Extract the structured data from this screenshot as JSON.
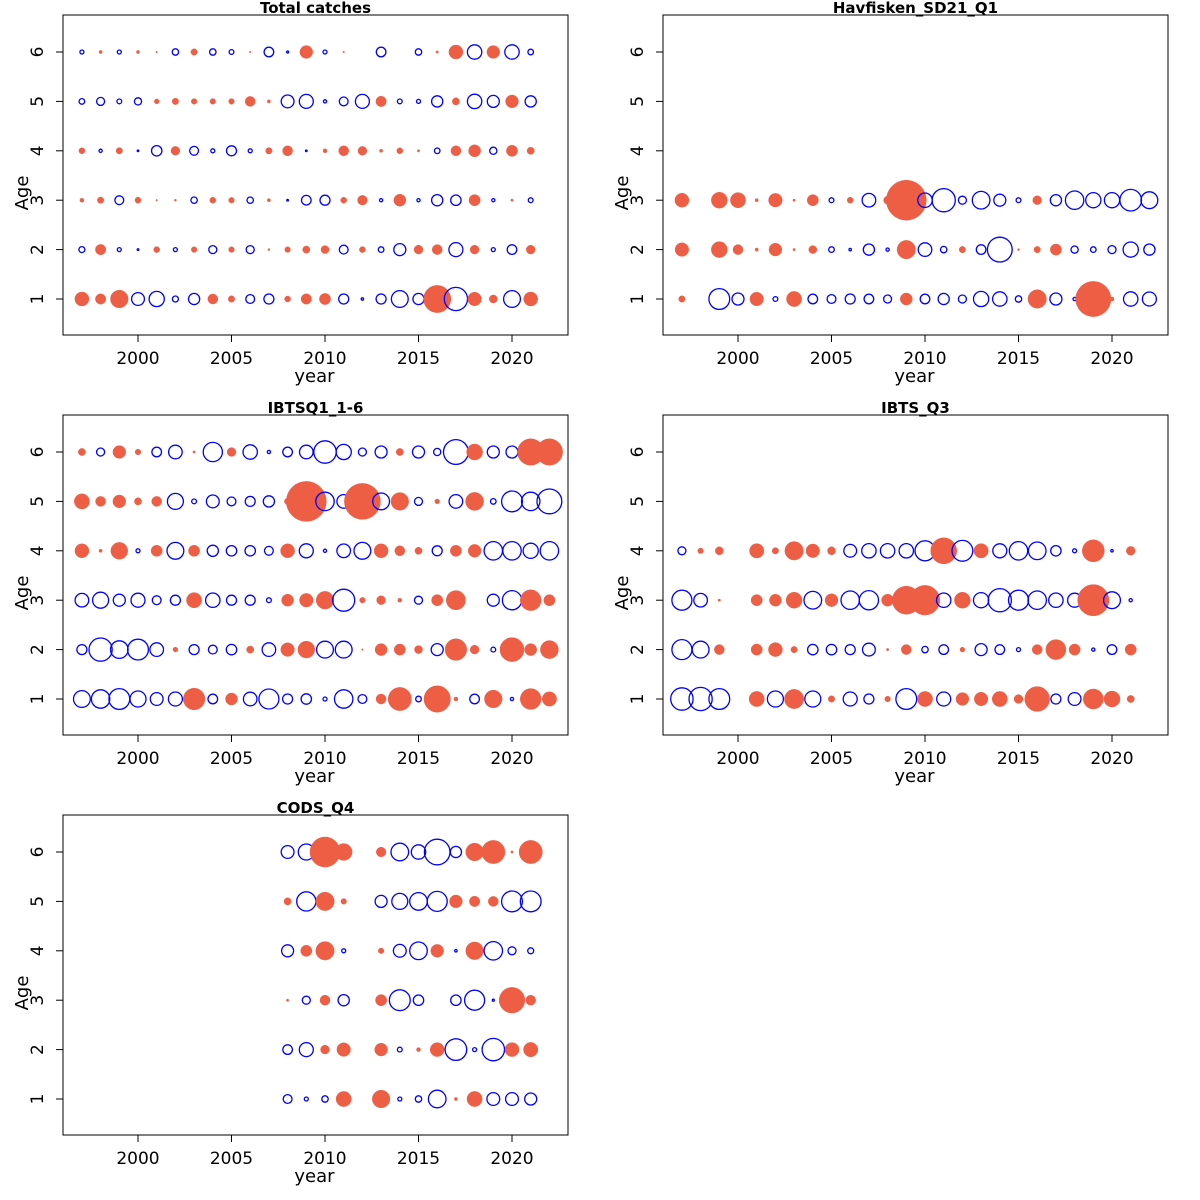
{
  "colors": {
    "positive": "#EE5E45",
    "negative": "#0000FF"
  },
  "chart_data": [
    {
      "type": "scatter",
      "title": "Total catches",
      "xlabel": "year",
      "ylabel": "Age",
      "xlim": [
        1996,
        2023
      ],
      "ylim": [
        0.3,
        6.7
      ],
      "xticks": [
        2000,
        2005,
        2010,
        2015,
        2020
      ],
      "yticks": [
        1,
        2,
        3,
        4,
        5,
        6
      ],
      "years": [
        1997,
        1998,
        1999,
        2000,
        2001,
        2002,
        2003,
        2004,
        2005,
        2006,
        2007,
        2008,
        2009,
        2010,
        2011,
        2012,
        2013,
        2014,
        2015,
        2016,
        2017,
        2018,
        2019,
        2020,
        2021
      ],
      "ages": [
        1,
        2,
        3,
        4,
        5,
        6
      ],
      "residuals": [
        [
          1.75,
          1.3,
          2.2,
          -1.6,
          -1.9,
          -0.75,
          -1.4,
          1.25,
          0.8,
          -1.1,
          -1.25,
          0.75,
          1.3,
          1.4,
          -1.25,
          -0.3,
          -1.25,
          -2.1,
          -1.4,
          3.4,
          -2.9,
          1.7,
          1,
          -2.1,
          1.75
        ],
        [
          -0.75,
          1.3,
          -0.5,
          -0.2,
          0.75,
          -0.5,
          0.7,
          -1,
          0.7,
          -1,
          0.25,
          0.7,
          0.9,
          1,
          -1.1,
          0.75,
          -0.7,
          -1.5,
          1.1,
          1.25,
          -1.75,
          1.1,
          -0.5,
          -1.2,
          1.1
        ],
        [
          0.5,
          0.8,
          -1.1,
          0.75,
          0.1,
          0.25,
          -0.8,
          0.75,
          0.7,
          -0.8,
          0.4,
          -0.2,
          -1.2,
          -1.25,
          0.75,
          1.2,
          -0.4,
          1.5,
          -0.4,
          -1.4,
          -1.3,
          1.4,
          -0.4,
          0.3,
          -0.6
        ],
        [
          0.75,
          -0.4,
          0.8,
          -0.15,
          -1.3,
          1.1,
          -1.1,
          -0.5,
          -1.25,
          -0.5,
          0.8,
          1.25,
          -0.15,
          0.5,
          1.25,
          1.1,
          0.4,
          0.75,
          0.3,
          -0.7,
          1.25,
          1.5,
          -0.9,
          1.4,
          0.9
        ],
        [
          -0.7,
          -1,
          -0.6,
          -0.9,
          0.6,
          0.8,
          0.7,
          0.7,
          0.7,
          1.25,
          0.4,
          -1.6,
          -1.75,
          -0.4,
          -1.1,
          -1.75,
          1.3,
          -0.6,
          -0.5,
          -1.4,
          0.9,
          -1.8,
          -1.5,
          1.6,
          -1.4
        ],
        [
          -0.5,
          0.4,
          -0.5,
          0.4,
          0.1,
          -0.8,
          0.8,
          -0.8,
          -0.6,
          0.2,
          -1.2,
          -0.25,
          1.6,
          -0.5,
          0.1,
          null,
          -1.2,
          null,
          -0.8,
          0.3,
          1.75,
          -1.8,
          1.6,
          -1.8,
          -0.7
        ]
      ]
    },
    {
      "type": "scatter",
      "title": "Havfisken_SD21_Q1",
      "xlabel": "year",
      "ylabel": "Age",
      "xlim": [
        1996,
        2023
      ],
      "ylim": [
        0.3,
        6.7
      ],
      "xticks": [
        2000,
        2005,
        2010,
        2015,
        2020
      ],
      "yticks": [
        1,
        2,
        3,
        4,
        5,
        6
      ],
      "years": [
        1997,
        1998,
        1999,
        2000,
        2001,
        2002,
        2003,
        2004,
        2005,
        2006,
        2007,
        2008,
        2009,
        2010,
        2011,
        2012,
        2013,
        2014,
        2015,
        2016,
        2017,
        2018,
        2019,
        2020,
        2021,
        2022
      ],
      "ages": [
        1,
        2,
        3
      ],
      "residuals": [
        [
          0.8,
          null,
          -2.6,
          -1.5,
          1.7,
          -0.6,
          1.9,
          -1.2,
          -1.1,
          -1.25,
          -1.2,
          -1,
          1.5,
          -1.2,
          -1.4,
          -1,
          -1.9,
          -1.8,
          -0.8,
          2.3,
          -1.5,
          -0.4,
          4.4,
          0.5,
          -1.8,
          -1.75
        ],
        [
          1.7,
          null,
          2,
          1.25,
          0.4,
          1.6,
          0.3,
          1,
          -0.7,
          -0.3,
          -1.4,
          -0.4,
          2.3,
          -1.7,
          -0.8,
          0.8,
          -1.2,
          -3.1,
          0.25,
          0.8,
          1.4,
          -0.9,
          -0.7,
          -1,
          -1.9,
          -1.4
        ],
        [
          1.75,
          null,
          2,
          1.9,
          0.4,
          1.7,
          0.3,
          1.4,
          -0.6,
          0.75,
          -1.7,
          1,
          5,
          -1.8,
          -2.9,
          -1,
          -2.2,
          -1.5,
          -0.6,
          1.1,
          -1.4,
          -2.3,
          -1.9,
          -1.9,
          -2.7,
          -2.1
        ]
      ]
    },
    {
      "type": "scatter",
      "title": "IBTSQ1_1-6",
      "xlabel": "year",
      "ylabel": "Age",
      "xlim": [
        1996,
        2023
      ],
      "ylim": [
        0.3,
        6.7
      ],
      "xticks": [
        2000,
        2005,
        2010,
        2015,
        2020
      ],
      "yticks": [
        1,
        2,
        3,
        4,
        5,
        6
      ],
      "years": [
        1997,
        1998,
        1999,
        2000,
        2001,
        2002,
        2003,
        2004,
        2005,
        2006,
        2007,
        2008,
        2009,
        2010,
        2011,
        2012,
        2013,
        2014,
        2015,
        2016,
        2017,
        2018,
        2019,
        2020,
        2021,
        2022
      ],
      "ages": [
        1,
        2,
        3,
        4,
        5,
        6
      ],
      "residuals": [
        [
          -2.1,
          -2.3,
          -2.6,
          -2,
          -1.6,
          -1.75,
          2.7,
          -1.2,
          1.5,
          -1.7,
          -2.5,
          -1.25,
          -1.3,
          -0.5,
          -2.3,
          -1.1,
          1.25,
          2.9,
          -0.7,
          3.3,
          0.5,
          -1.2,
          2.2,
          -0.4,
          2.6,
          1.8
        ],
        [
          -1.25,
          -2.9,
          -2.2,
          -2.6,
          -1.7,
          0.6,
          -1.25,
          -1.1,
          -1.3,
          0.9,
          -1.7,
          1.7,
          2.1,
          -2.1,
          -2.1,
          0.1,
          1.5,
          1.4,
          1,
          -1.5,
          2.7,
          1.1,
          -0.6,
          3,
          1.5,
          2.25
        ],
        [
          -1.7,
          -2,
          -1.5,
          -1.75,
          -1.1,
          -1.25,
          1.9,
          -1.8,
          -1.25,
          -1.25,
          -0.6,
          1.5,
          1.7,
          2.2,
          -2.75,
          0.7,
          1.1,
          0.5,
          -1,
          1.4,
          2.4,
          null,
          -1.5,
          -2.4,
          2.6,
          1.4
        ],
        [
          1.75,
          0.4,
          2.1,
          -0.5,
          1.4,
          -2.1,
          1.4,
          -1.4,
          -1.3,
          -1.3,
          -1.1,
          1.75,
          -1.75,
          -0.4,
          -1.7,
          -2.1,
          1.75,
          1.25,
          0.9,
          -1.25,
          1.4,
          1.6,
          -2.3,
          -2.3,
          -1.9,
          -2.3
        ],
        [
          1.9,
          1.25,
          1.6,
          0.9,
          1.25,
          -2,
          -0.6,
          -1.6,
          -1.1,
          -1.25,
          -1.4,
          0.8,
          5,
          -2.3,
          -1.7,
          4.5,
          -2.1,
          2.2,
          -1,
          0.6,
          -1.7,
          2.25,
          -0.7,
          -2.6,
          -2.3,
          -3.1
        ],
        [
          0.9,
          -1,
          1.6,
          0.7,
          -1.2,
          -1.7,
          0.3,
          -2.4,
          1.1,
          -1.8,
          -0.4,
          -1.2,
          -1.7,
          -2.8,
          -1.9,
          -1,
          -1.5,
          0.9,
          -1.5,
          -0.9,
          -3.1,
          2,
          -1.5,
          -1.5,
          3.3,
          3.3
        ]
      ]
    },
    {
      "type": "scatter",
      "title": "IBTS_Q3",
      "xlabel": "year",
      "ylabel": "Age",
      "xlim": [
        1996,
        2023
      ],
      "ylim": [
        0.3,
        6.7
      ],
      "xticks": [
        2000,
        2005,
        2010,
        2015,
        2020
      ],
      "yticks": [
        1,
        2,
        3,
        4,
        5,
        6
      ],
      "years": [
        1997,
        1998,
        1999,
        2000,
        2001,
        2002,
        2003,
        2004,
        2005,
        2006,
        2007,
        2008,
        2009,
        2010,
        2011,
        2012,
        2013,
        2014,
        2015,
        2016,
        2017,
        2018,
        2019,
        2020,
        2021
      ],
      "ages": [
        1,
        2,
        3,
        4
      ],
      "residuals": [
        [
          -2.8,
          -2.9,
          -2.6,
          null,
          1.9,
          -2,
          2.4,
          -2,
          0.8,
          -1.75,
          -1.25,
          0.7,
          -2.6,
          1.9,
          -1.75,
          1.6,
          1.7,
          1.9,
          1.1,
          3.1,
          -1.25,
          -1.6,
          2.5,
          2,
          0.9
        ],
        [
          -2.5,
          -2.1,
          1.25,
          null,
          1.4,
          1.75,
          0.8,
          -1.3,
          -1.3,
          -1.25,
          -1.6,
          0.3,
          1.25,
          -0.8,
          -1.2,
          0.6,
          -1.5,
          -1.2,
          -0.5,
          1.25,
          2.5,
          1.4,
          -0.4,
          -1.2,
          1.4
        ],
        [
          -2.5,
          -1.7,
          0.3,
          null,
          1.4,
          1.5,
          2,
          -2.2,
          1.6,
          -2.3,
          -2.4,
          1.5,
          3.5,
          3.7,
          -1.8,
          2,
          -1.9,
          -2.9,
          -2.5,
          -2.3,
          -1.8,
          -1.75,
          3.9,
          -2.1,
          -0.4
        ],
        [
          -1,
          0.7,
          1,
          null,
          1.8,
          0.8,
          2.3,
          1.7,
          1,
          -1.6,
          -1.8,
          -1.8,
          -1.8,
          -2.5,
          3.25,
          -2.6,
          1.8,
          -1.75,
          -2.3,
          -2.2,
          -1.3,
          -0.5,
          2.75,
          -0.3,
          1.1
        ]
      ]
    },
    {
      "type": "scatter",
      "title": "CODS_Q4",
      "xlabel": "year",
      "ylabel": "Age",
      "xlim": [
        1996,
        2023
      ],
      "ylim": [
        0.3,
        6.7
      ],
      "xticks": [
        2000,
        2005,
        2010,
        2015,
        2020
      ],
      "yticks": [
        1,
        2,
        3,
        4,
        5,
        6
      ],
      "years": [
        2008,
        2009,
        2010,
        2011,
        2012,
        2013,
        2014,
        2015,
        2016,
        2017,
        2018,
        2019,
        2020,
        2021
      ],
      "ages": [
        1,
        2,
        3,
        4,
        5,
        6
      ],
      "residuals": [
        [
          -1.1,
          -0.5,
          -0.8,
          1.9,
          null,
          2.2,
          -0.5,
          -0.8,
          -2.2,
          0.4,
          1.9,
          -1.6,
          -1.6,
          -1.5
        ],
        [
          -1.2,
          -1.75,
          1.1,
          1.7,
          null,
          1.6,
          -0.6,
          0.5,
          1.75,
          -2.7,
          -0.5,
          -2.8,
          1.75,
          1.8
        ],
        [
          0.3,
          -1,
          1.25,
          -1.4,
          null,
          1.4,
          -2.6,
          -1.3,
          null,
          -1.3,
          -2.5,
          -0.25,
          3.2,
          1.25
        ],
        [
          -1.5,
          1.4,
          2.3,
          -0.5,
          null,
          0.7,
          -1.6,
          -2.2,
          1.6,
          -0.3,
          2.2,
          -2.3,
          -1,
          -0.75
        ],
        [
          0.9,
          -2.4,
          2.3,
          0.7,
          null,
          -1.5,
          -2,
          -2.2,
          -2.5,
          1.6,
          1.3,
          1.25,
          -2.6,
          -2.6
        ],
        [
          -1.6,
          -2,
          3.75,
          2.1,
          null,
          1.2,
          -2.2,
          -1.8,
          -3.2,
          -1.4,
          2.2,
          2.9,
          0.3,
          2.9
        ]
      ]
    }
  ]
}
